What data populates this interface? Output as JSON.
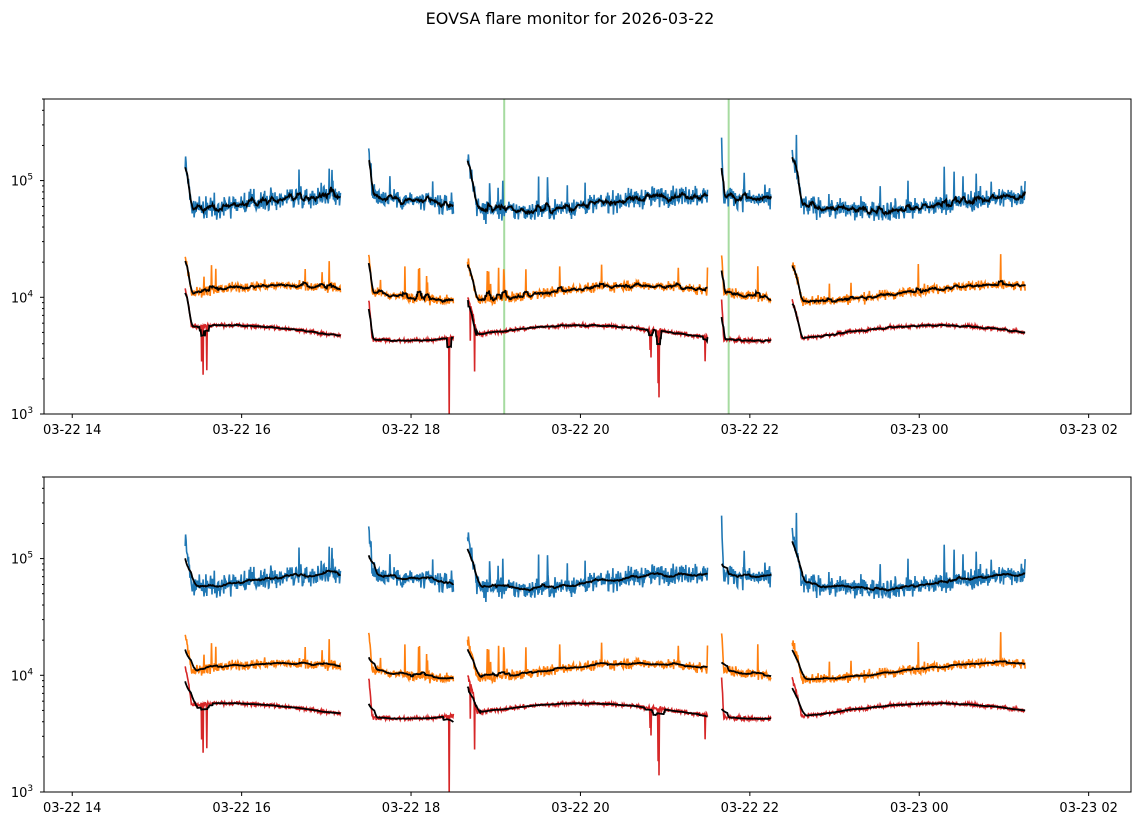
{
  "title": "EOVSA flare monitor for 2026-03-22",
  "chart_data": [
    {
      "type": "line",
      "yscale": "log",
      "ylim": [
        1000,
        500000
      ],
      "xlim": [
        "2026-03-22 13:40",
        "2026-03-23 02:30"
      ],
      "xticks": [
        {
          "t": "2026-03-22 14:00",
          "label": "03-22 14"
        },
        {
          "t": "2026-03-22 16:00",
          "label": "03-22 16"
        },
        {
          "t": "2026-03-22 18:00",
          "label": "03-22 18"
        },
        {
          "t": "2026-03-22 20:00",
          "label": "03-22 20"
        },
        {
          "t": "2026-03-22 22:00",
          "label": "03-22 22"
        },
        {
          "t": "2026-03-23 00:00",
          "label": "03-23 00"
        },
        {
          "t": "2026-03-23 02:00",
          "label": "03-23 02"
        }
      ],
      "yticks": [
        {
          "v": 1000,
          "base": "10",
          "exp": "3"
        },
        {
          "v": 10000,
          "base": "10",
          "exp": "4"
        },
        {
          "v": 100000,
          "base": "10",
          "exp": "5"
        }
      ],
      "vlines": {
        "times": [
          "2026-03-22 19:06",
          "2026-03-22 21:45"
        ],
        "color": "#a6dba0"
      },
      "segments": [
        {
          "start": "2026-03-22 15:20",
          "end": "2026-03-22 17:10"
        },
        {
          "start": "2026-03-22 17:30",
          "end": "2026-03-22 18:30"
        },
        {
          "start": "2026-03-22 18:40",
          "end": "2026-03-22 21:30"
        },
        {
          "start": "2026-03-22 21:40",
          "end": "2026-03-22 22:15"
        },
        {
          "start": "2026-03-22 22:30",
          "end": "2026-03-23 01:15"
        }
      ],
      "series": [
        {
          "color": "#1f77b4",
          "base": 65000,
          "noise": 0.1,
          "spike_up": true
        },
        {
          "color": "#ff7f0e",
          "base": 11000,
          "noise": 0.05,
          "spike_up": true
        },
        {
          "color": "#d62728",
          "base": 5000,
          "noise": 0.02,
          "spike_down": true
        }
      ],
      "smooth_color": "#000000"
    },
    {
      "type": "line",
      "yscale": "log",
      "ylim": [
        1000,
        500000
      ],
      "xlim": [
        "2026-03-22 13:40",
        "2026-03-23 02:30"
      ],
      "xticks": [
        {
          "t": "2026-03-22 14:00",
          "label": "03-22 14"
        },
        {
          "t": "2026-03-22 16:00",
          "label": "03-22 16"
        },
        {
          "t": "2026-03-22 18:00",
          "label": "03-22 18"
        },
        {
          "t": "2026-03-22 20:00",
          "label": "03-22 20"
        },
        {
          "t": "2026-03-22 22:00",
          "label": "03-22 22"
        },
        {
          "t": "2026-03-23 00:00",
          "label": "03-23 00"
        },
        {
          "t": "2026-03-23 02:00",
          "label": "03-23 02"
        }
      ],
      "yticks": [
        {
          "v": 1000,
          "base": "10",
          "exp": "3"
        },
        {
          "v": 10000,
          "base": "10",
          "exp": "4"
        },
        {
          "v": 100000,
          "base": "10",
          "exp": "5"
        }
      ],
      "segments": [
        {
          "start": "2026-03-22 15:20",
          "end": "2026-03-22 17:10"
        },
        {
          "start": "2026-03-22 17:30",
          "end": "2026-03-22 18:30"
        },
        {
          "start": "2026-03-22 18:40",
          "end": "2026-03-22 21:30"
        },
        {
          "start": "2026-03-22 21:40",
          "end": "2026-03-22 22:15"
        },
        {
          "start": "2026-03-22 22:30",
          "end": "2026-03-23 01:15"
        }
      ],
      "series": [
        {
          "color": "#1f77b4",
          "base": 65000,
          "noise": 0.1,
          "spike_up": true
        },
        {
          "color": "#ff7f0e",
          "base": 11000,
          "noise": 0.05,
          "spike_up": true
        },
        {
          "color": "#d62728",
          "base": 5000,
          "noise": 0.02,
          "spike_down": true
        }
      ],
      "smooth_color": "#000000"
    }
  ]
}
